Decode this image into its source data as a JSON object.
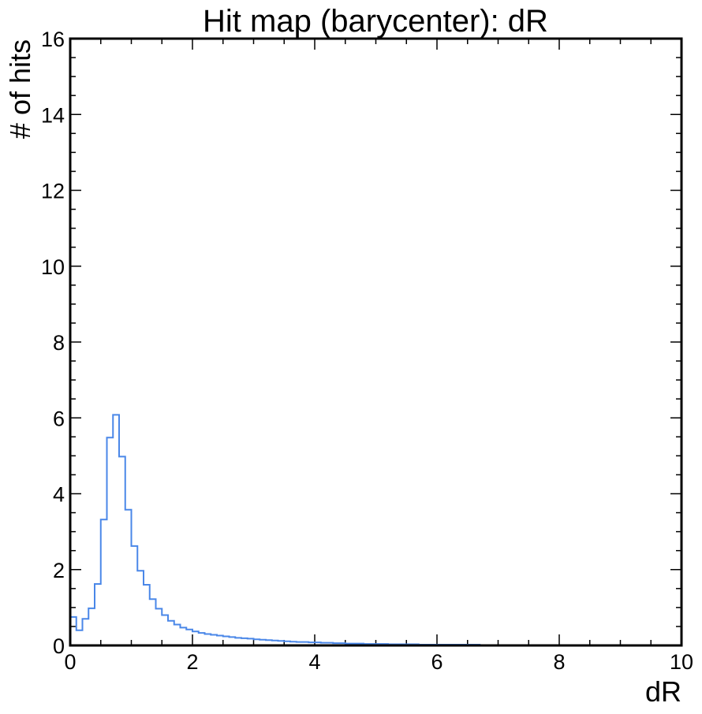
{
  "chart_data": {
    "type": "line",
    "title": "Hit map (barycenter): dR",
    "xlabel": "dR",
    "ylabel": "# of hits",
    "xlim": [
      0,
      10
    ],
    "ylim": [
      0,
      16
    ],
    "x_ticks": [
      "0",
      "2",
      "4",
      "6",
      "8",
      "10"
    ],
    "y_ticks": [
      "0",
      "2",
      "4",
      "6",
      "8",
      "10",
      "12",
      "14",
      "16"
    ],
    "grid": false,
    "legend": "none",
    "line_color": "#4a87e8",
    "bin_width": 0.1,
    "series": [
      {
        "bin_edges_start": 0,
        "values": [
          0.75,
          0.4,
          0.7,
          0.98,
          1.62,
          3.32,
          5.48,
          6.08,
          4.98,
          3.58,
          2.62,
          1.97,
          1.6,
          1.22,
          0.97,
          0.8,
          0.65,
          0.55,
          0.47,
          0.42,
          0.37,
          0.33,
          0.3,
          0.28,
          0.26,
          0.24,
          0.22,
          0.2,
          0.19,
          0.18,
          0.16,
          0.15,
          0.14,
          0.13,
          0.12,
          0.11,
          0.1,
          0.09,
          0.09,
          0.08,
          0.08,
          0.07,
          0.07,
          0.06,
          0.06,
          0.05,
          0.05,
          0.05,
          0.04,
          0.04,
          0.04,
          0.04,
          0.03,
          0.03,
          0.03,
          0.03,
          0.03,
          0.02,
          0.02,
          0.02,
          0.02,
          0.02,
          0.02,
          0.02,
          0.02,
          0.02,
          0.02,
          0.01,
          0.01,
          0.01,
          0.01,
          0.01,
          0.01,
          0.01,
          0.01,
          0.01,
          0.01,
          0.01,
          0.01,
          0.01,
          0.01,
          0.01,
          0.01,
          0.01,
          0.01,
          0.01,
          0.01,
          0.01,
          0.01,
          0.01,
          0.01,
          0.01,
          0.01,
          0.01,
          0.01,
          0.01,
          0.01,
          0.0,
          0.0,
          0.0
        ]
      }
    ]
  }
}
